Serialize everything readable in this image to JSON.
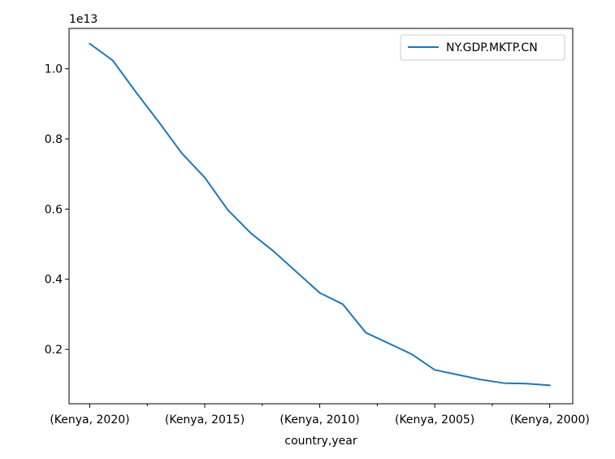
{
  "chart_data": {
    "type": "line",
    "title": "",
    "xlabel": "country,year",
    "ylabel": "",
    "y_multiplier_label": "1e13",
    "x": [
      "(Kenya, 2020)",
      "(Kenya, 2019)",
      "(Kenya, 2018)",
      "(Kenya, 2017)",
      "(Kenya, 2016)",
      "(Kenya, 2015)",
      "(Kenya, 2014)",
      "(Kenya, 2013)",
      "(Kenya, 2012)",
      "(Kenya, 2011)",
      "(Kenya, 2010)",
      "(Kenya, 2009)",
      "(Kenya, 2008)",
      "(Kenya, 2007)",
      "(Kenya, 2006)",
      "(Kenya, 2005)",
      "(Kenya, 2004)",
      "(Kenya, 2003)",
      "(Kenya, 2002)",
      "(Kenya, 2001)",
      "(Kenya, 2000)"
    ],
    "x_tick_labels": [
      "(Kenya, 2020)",
      "(Kenya, 2015)",
      "(Kenya, 2010)",
      "(Kenya, 2005)",
      "(Kenya, 2000)"
    ],
    "x_tick_indices": [
      0,
      5,
      10,
      15,
      20
    ],
    "x_minor_tick_indices": [
      2.5,
      7.5,
      12.5,
      17.5
    ],
    "series": [
      {
        "name": "NY.GDP.MKTP.CN",
        "color": "#1f77b4",
        "values": [
          1.0715,
          1.0238,
          0.9341,
          0.8484,
          0.7594,
          0.6899,
          0.5978,
          0.5315,
          0.4794,
          0.4202,
          0.3612,
          0.3289,
          0.2478,
          0.2171,
          0.1862,
          0.1415,
          0.1279,
          0.114,
          0.1039,
          0.1023,
          0.0976
        ]
      }
    ],
    "y_ticks": [
      0.2,
      0.4,
      0.6,
      0.8,
      1.0
    ],
    "y_tick_labels": [
      "0.2",
      "0.4",
      "0.6",
      "0.8",
      "1.0"
    ],
    "ylim": [
      0.045,
      1.115
    ],
    "xlim": [
      -0.9,
      21.0
    ],
    "grid": false,
    "legend_position": "upper right"
  }
}
